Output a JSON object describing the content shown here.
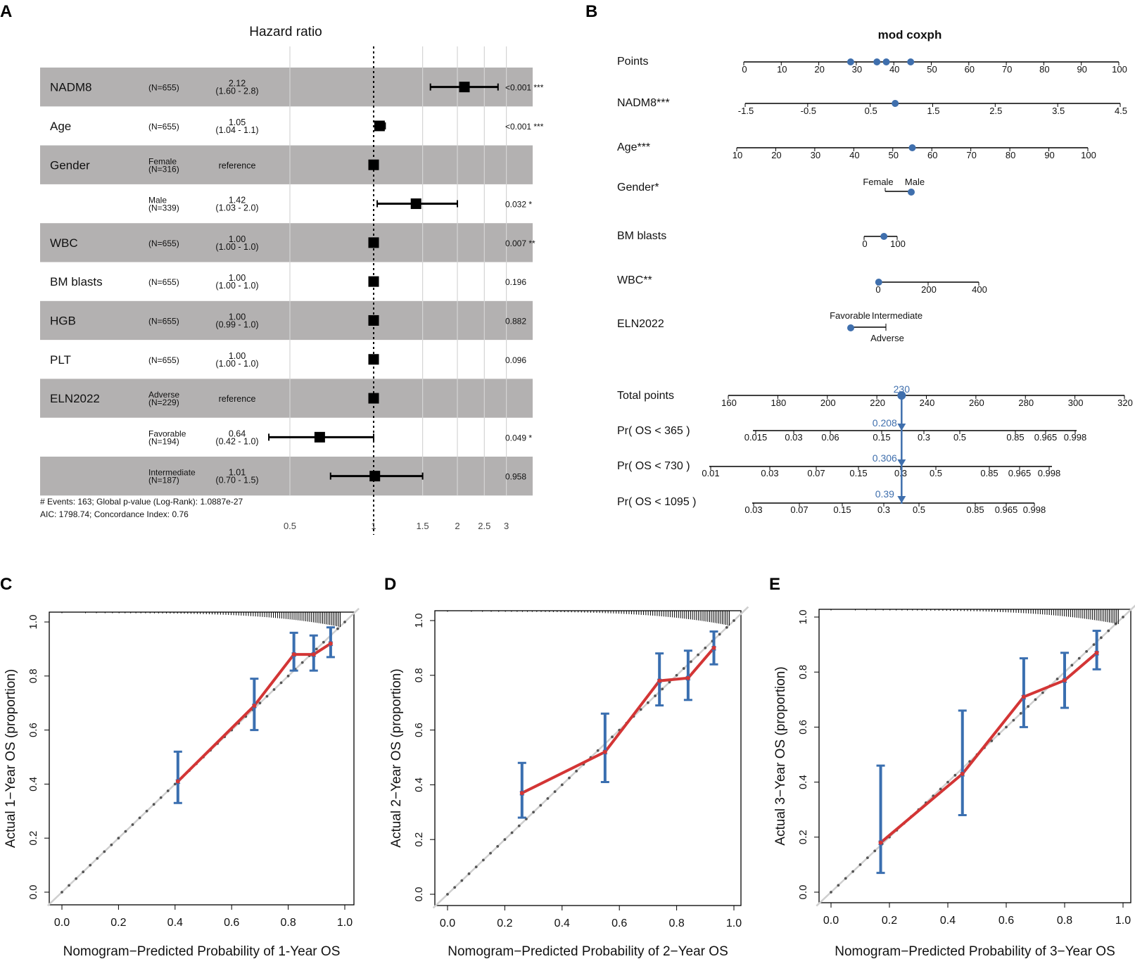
{
  "panel_labels": {
    "a": "A",
    "b": "B",
    "c": "C",
    "d": "D",
    "e": "E"
  },
  "chart_data": [
    {
      "type": "forest",
      "panel": "A",
      "title": "Hazard ratio",
      "x_scale": "log",
      "x_ticks": [
        0.5,
        1,
        1.5,
        2,
        2.5,
        3
      ],
      "x_tick_labels": [
        "0.5",
        "1",
        "1.5",
        "2",
        "2.5",
        "3"
      ],
      "reference_line": 1,
      "rows": [
        {
          "variable": "NADM8",
          "level": "(N=655)",
          "hr_text": "2.12",
          "ci_text": "(1.60 - 2.8)",
          "hr": 2.12,
          "lo": 1.6,
          "hi": 2.8,
          "p_text": "<0.001 ***",
          "shaded": true
        },
        {
          "variable": "Age",
          "level": "(N=655)",
          "hr_text": "1.05",
          "ci_text": "(1.04 - 1.1)",
          "hr": 1.05,
          "lo": 1.04,
          "hi": 1.1,
          "p_text": "<0.001 ***",
          "shaded": false
        },
        {
          "variable": "Gender",
          "level": "Female",
          "level_n": "(N=316)",
          "hr_text": "reference",
          "ci_text": "",
          "hr": 1.0,
          "lo": 1.0,
          "hi": 1.0,
          "p_text": "",
          "shaded": true
        },
        {
          "variable": "",
          "level": "Male",
          "level_n": "(N=339)",
          "hr_text": "1.42",
          "ci_text": "(1.03 - 2.0)",
          "hr": 1.42,
          "lo": 1.03,
          "hi": 2.0,
          "p_text": "0.032 *",
          "shaded": false
        },
        {
          "variable": "WBC",
          "level": "(N=655)",
          "hr_text": "1.00",
          "ci_text": "(1.00 - 1.0)",
          "hr": 1.0,
          "lo": 1.0,
          "hi": 1.0,
          "p_text": "0.007 **",
          "shaded": true
        },
        {
          "variable": "BM blasts",
          "level": "(N=655)",
          "hr_text": "1.00",
          "ci_text": "(1.00 - 1.0)",
          "hr": 1.0,
          "lo": 1.0,
          "hi": 1.0,
          "p_text": "0.196",
          "shaded": false
        },
        {
          "variable": "HGB",
          "level": "(N=655)",
          "hr_text": "1.00",
          "ci_text": "(0.99 - 1.0)",
          "hr": 1.0,
          "lo": 0.99,
          "hi": 1.0,
          "p_text": "0.882",
          "shaded": true
        },
        {
          "variable": "PLT",
          "level": "(N=655)",
          "hr_text": "1.00",
          "ci_text": "(1.00 - 1.0)",
          "hr": 1.0,
          "lo": 1.0,
          "hi": 1.0,
          "p_text": "0.096",
          "shaded": false
        },
        {
          "variable": "ELN2022",
          "level": "Adverse",
          "level_n": "(N=229)",
          "hr_text": "reference",
          "ci_text": "",
          "hr": 1.0,
          "lo": 1.0,
          "hi": 1.0,
          "p_text": "",
          "shaded": true
        },
        {
          "variable": "",
          "level": "Favorable",
          "level_n": "(N=194)",
          "hr_text": "0.64",
          "ci_text": "(0.42 - 1.0)",
          "hr": 0.64,
          "lo": 0.42,
          "hi": 1.0,
          "p_text": "0.049 *",
          "shaded": false
        },
        {
          "variable": "",
          "level": "Intermediate",
          "level_n": "(N=187)",
          "hr_text": "1.01",
          "ci_text": "(0.70 - 1.5)",
          "hr": 1.01,
          "lo": 0.7,
          "hi": 1.5,
          "p_text": "0.958",
          "shaded": true
        }
      ],
      "footnote1": "# Events: 163; Global p-value (Log-Rank): 1.0887e-27",
      "footnote2": "AIC: 1798.74; Concordance Index: 0.76"
    },
    {
      "type": "nomogram",
      "panel": "B",
      "title": "mod coxph",
      "scales": [
        {
          "label": "Points",
          "min": 0,
          "max": 100,
          "ticks": [
            "0",
            "10",
            "20",
            "30",
            "40",
            "50",
            "60",
            "70",
            "80",
            "90",
            "100"
          ],
          "tick_values": [
            0,
            10,
            20,
            30,
            40,
            50,
            60,
            70,
            80,
            90,
            100
          ],
          "markers": [
            28.5,
            35.5,
            38,
            44.5
          ]
        },
        {
          "label": "NADM8***",
          "min": -1.5,
          "max": 4.5,
          "ticks": [
            "-1.5",
            "-0.5",
            "0.5",
            "1.5",
            "2.5",
            "3.5",
            "4.5"
          ],
          "tick_values": [
            -1.5,
            -0.5,
            0.5,
            1.5,
            2.5,
            3.5,
            4.5
          ],
          "markers": [
            0.9
          ]
        },
        {
          "label": "Age***",
          "min": 10,
          "max": 100,
          "ticks": [
            "10",
            "20",
            "30",
            "40",
            "50",
            "60",
            "70",
            "80",
            "90",
            "100"
          ],
          "tick_values": [
            10,
            20,
            30,
            40,
            50,
            60,
            70,
            80,
            90,
            100
          ],
          "markers": [
            55
          ]
        },
        {
          "label": "Gender*",
          "categories": [
            "Female",
            "Male"
          ],
          "selected": "Male"
        },
        {
          "label": "BM blasts",
          "min": 0,
          "max": 100,
          "ticks": [
            "0",
            "100"
          ],
          "tick_values": [
            0,
            100
          ],
          "markers": [
            60
          ]
        },
        {
          "label": "WBC**",
          "min": 0,
          "max": 400,
          "ticks": [
            "0",
            "200",
            "400"
          ],
          "tick_values": [
            0,
            200,
            400
          ],
          "markers": [
            5
          ]
        },
        {
          "label": "ELN2022",
          "categories": [
            "Favorable",
            "Intermediate",
            "Adverse"
          ],
          "selected": "Favorable"
        },
        {
          "label": "Total points",
          "min": 160,
          "max": 320,
          "ticks": [
            "160",
            "180",
            "200",
            "220",
            "240",
            "260",
            "280",
            "300",
            "320"
          ],
          "tick_values": [
            160,
            180,
            200,
            220,
            240,
            260,
            280,
            300,
            320
          ],
          "markers": [
            230
          ],
          "marker_label": "230"
        },
        {
          "label": "Pr( OS < 365 )",
          "ticks": [
            "0.015",
            "0.03",
            "0.06",
            "0.15",
            "0.3",
            "0.5",
            "0.85",
            "0.965",
            "0.998"
          ],
          "marker_label": "0.208"
        },
        {
          "label": "Pr( OS < 730 )",
          "ticks": [
            "0.01",
            "0.03",
            "0.07",
            "0.15",
            "0.3",
            "0.5",
            "0.85",
            "0.965",
            "0.998"
          ],
          "marker_label": "0.306"
        },
        {
          "label": "Pr( OS < 1095 )",
          "ticks": [
            "0.03",
            "0.07",
            "0.15",
            "0.3",
            "0.5",
            "0.85",
            "0.965",
            "0.998"
          ],
          "marker_label": "0.39"
        }
      ]
    },
    {
      "type": "calibration",
      "panel": "C",
      "xlabel": "Nomogram−Predicted Probability of 1-Year OS",
      "ylabel": "Actual 1−Year OS (proportion)",
      "xlim": [
        0,
        1
      ],
      "ylim": [
        0,
        1
      ],
      "x_ticks": [
        "0.0",
        "0.2",
        "0.4",
        "0.6",
        "0.8",
        "1.0"
      ],
      "y_ticks": [
        "0.0",
        "0.2",
        "0.4",
        "0.6",
        "0.8",
        "1.0"
      ],
      "points": [
        {
          "x": 0.41,
          "y": 0.41,
          "lo": 0.33,
          "hi": 0.52
        },
        {
          "x": 0.68,
          "y": 0.69,
          "lo": 0.6,
          "hi": 0.79
        },
        {
          "x": 0.82,
          "y": 0.88,
          "lo": 0.82,
          "hi": 0.96
        },
        {
          "x": 0.89,
          "y": 0.88,
          "lo": 0.82,
          "hi": 0.95
        },
        {
          "x": 0.95,
          "y": 0.92,
          "lo": 0.87,
          "hi": 0.98
        }
      ],
      "rug_min": 0.0
    },
    {
      "type": "calibration",
      "panel": "D",
      "xlabel": "Nomogram−Predicted Probability of 2−Year OS",
      "ylabel": "Actual 2−Year OS (proportion)",
      "xlim": [
        0,
        1
      ],
      "ylim": [
        0,
        1
      ],
      "x_ticks": [
        "0.0",
        "0.2",
        "0.4",
        "0.6",
        "0.8",
        "1.0"
      ],
      "y_ticks": [
        "0.0",
        "0.2",
        "0.4",
        "0.6",
        "0.8",
        "1.0"
      ],
      "points": [
        {
          "x": 0.26,
          "y": 0.37,
          "lo": 0.28,
          "hi": 0.48
        },
        {
          "x": 0.55,
          "y": 0.52,
          "lo": 0.41,
          "hi": 0.66
        },
        {
          "x": 0.74,
          "y": 0.78,
          "lo": 0.69,
          "hi": 0.88
        },
        {
          "x": 0.84,
          "y": 0.79,
          "lo": 0.71,
          "hi": 0.89
        },
        {
          "x": 0.93,
          "y": 0.9,
          "lo": 0.84,
          "hi": 0.96
        }
      ],
      "rug_min": 0.0
    },
    {
      "type": "calibration",
      "panel": "E",
      "xlabel": "Nomogram−Predicted Probability of 3−Year OS",
      "ylabel": "Actual 3−Year OS (proportion)",
      "xlim": [
        0,
        1
      ],
      "ylim": [
        0,
        1
      ],
      "x_ticks": [
        "0.0",
        "0.2",
        "0.4",
        "0.6",
        "0.8",
        "1.0"
      ],
      "y_ticks": [
        "0.0",
        "0.2",
        "0.4",
        "0.6",
        "0.8",
        "1.0"
      ],
      "points": [
        {
          "x": 0.17,
          "y": 0.18,
          "lo": 0.07,
          "hi": 0.46
        },
        {
          "x": 0.45,
          "y": 0.43,
          "lo": 0.28,
          "hi": 0.66
        },
        {
          "x": 0.66,
          "y": 0.71,
          "lo": 0.6,
          "hi": 0.85
        },
        {
          "x": 0.8,
          "y": 0.77,
          "lo": 0.67,
          "hi": 0.87
        },
        {
          "x": 0.91,
          "y": 0.87,
          "lo": 0.81,
          "hi": 0.95
        }
      ],
      "rug_min": 0.0
    }
  ]
}
